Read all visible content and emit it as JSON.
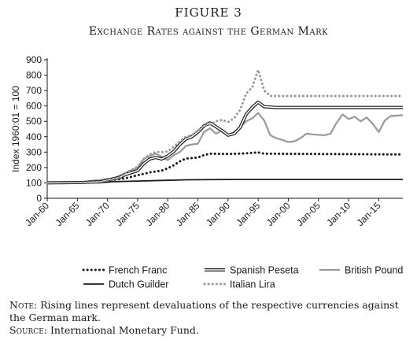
{
  "figure": {
    "label": "FIGURE 3",
    "title": "Exchange Rates against the German Mark"
  },
  "notes": {
    "note_label": "Note:",
    "note_text": " Rising lines represent devaluations of the respective currencies against the German mark.",
    "source_label": "Source:",
    "source_text": " International Monetary Fund."
  },
  "chart_data": {
    "type": "line",
    "title": "Exchange Rates against the German Mark",
    "xlabel": "",
    "ylabel": "Index 1960:01 = 100",
    "xlim": [
      1960,
      2019
    ],
    "ylim": [
      0,
      900
    ],
    "yticks": [
      0,
      100,
      200,
      300,
      400,
      500,
      600,
      700,
      800,
      900
    ],
    "xticks": [
      1960,
      1965,
      1970,
      1975,
      1980,
      1985,
      1990,
      1995,
      2000,
      2005,
      2010,
      2015
    ],
    "xticklabels": [
      "Jan-60",
      "Jan-65",
      "Jan-70",
      "Jan-75",
      "Jan-80",
      "Jan-85",
      "Jan-90",
      "Jan-95",
      "Jan-00",
      "Jan-05",
      "Jan-10",
      "Jan-15"
    ],
    "grid": false,
    "legend_position": "bottom",
    "series": [
      {
        "name": "French Franc",
        "color": "#1a1a1a",
        "style": "dotted",
        "points": [
          [
            1960,
            100
          ],
          [
            1965,
            101
          ],
          [
            1969,
            104
          ],
          [
            1970,
            115
          ],
          [
            1973,
            130
          ],
          [
            1975,
            150
          ],
          [
            1977,
            168
          ],
          [
            1979,
            180
          ],
          [
            1980,
            195
          ],
          [
            1981,
            215
          ],
          [
            1982,
            240
          ],
          [
            1983,
            258
          ],
          [
            1985,
            265
          ],
          [
            1986,
            280
          ],
          [
            1987,
            290
          ],
          [
            1990,
            288
          ],
          [
            1993,
            292
          ],
          [
            1995,
            298
          ],
          [
            1996,
            290
          ],
          [
            2019,
            285
          ]
        ]
      },
      {
        "name": "Spanish Peseta",
        "color": "#1a1a1a",
        "style": "double",
        "points": [
          [
            1960,
            100
          ],
          [
            1966,
            103
          ],
          [
            1969,
            108
          ],
          [
            1970,
            118
          ],
          [
            1972,
            135
          ],
          [
            1973,
            155
          ],
          [
            1975,
            180
          ],
          [
            1976,
            225
          ],
          [
            1977,
            255
          ],
          [
            1978,
            265
          ],
          [
            1979,
            255
          ],
          [
            1980,
            275
          ],
          [
            1981,
            305
          ],
          [
            1982,
            350
          ],
          [
            1983,
            385
          ],
          [
            1984,
            400
          ],
          [
            1985,
            430
          ],
          [
            1986,
            470
          ],
          [
            1987,
            490
          ],
          [
            1988,
            465
          ],
          [
            1989,
            440
          ],
          [
            1990,
            410
          ],
          [
            1991,
            420
          ],
          [
            1992,
            460
          ],
          [
            1993,
            545
          ],
          [
            1994,
            590
          ],
          [
            1995,
            625
          ],
          [
            1996,
            595
          ],
          [
            1998,
            590
          ],
          [
            2019,
            590
          ]
        ]
      },
      {
        "name": "British Pound",
        "color": "#999999",
        "style": "solid",
        "points": [
          [
            1960,
            100
          ],
          [
            1966,
            103
          ],
          [
            1967,
            112
          ],
          [
            1969,
            120
          ],
          [
            1971,
            130
          ],
          [
            1973,
            165
          ],
          [
            1975,
            200
          ],
          [
            1976,
            255
          ],
          [
            1977,
            275
          ],
          [
            1978,
            290
          ],
          [
            1979,
            270
          ],
          [
            1980,
            248
          ],
          [
            1981,
            280
          ],
          [
            1982,
            300
          ],
          [
            1983,
            340
          ],
          [
            1984,
            350
          ],
          [
            1985,
            355
          ],
          [
            1986,
            430
          ],
          [
            1987,
            455
          ],
          [
            1988,
            420
          ],
          [
            1989,
            440
          ],
          [
            1990,
            410
          ],
          [
            1991,
            430
          ],
          [
            1992,
            460
          ],
          [
            1993,
            500
          ],
          [
            1994,
            520
          ],
          [
            1995,
            555
          ],
          [
            1996,
            505
          ],
          [
            1997,
            410
          ],
          [
            1998,
            390
          ],
          [
            1999,
            380
          ],
          [
            2000,
            365
          ],
          [
            2001,
            370
          ],
          [
            2002,
            390
          ],
          [
            2003,
            420
          ],
          [
            2004,
            415
          ],
          [
            2005,
            412
          ],
          [
            2006,
            410
          ],
          [
            2007,
            420
          ],
          [
            2008,
            490
          ],
          [
            2009,
            545
          ],
          [
            2010,
            515
          ],
          [
            2011,
            530
          ],
          [
            2012,
            500
          ],
          [
            2013,
            525
          ],
          [
            2014,
            485
          ],
          [
            2015,
            430
          ],
          [
            2016,
            505
          ],
          [
            2017,
            535
          ],
          [
            2019,
            540
          ]
        ]
      },
      {
        "name": "Dutch Guilder",
        "color": "#1a1a1a",
        "style": "solid",
        "points": [
          [
            1960,
            100
          ],
          [
            1961,
            98
          ],
          [
            1969,
            102
          ],
          [
            1971,
            108
          ],
          [
            1975,
            112
          ],
          [
            1979,
            116
          ],
          [
            1983,
            120
          ],
          [
            1990,
            122
          ],
          [
            2019,
            122
          ]
        ]
      },
      {
        "name": "Italian Lira",
        "color": "#999999",
        "style": "dotted",
        "points": [
          [
            1960,
            100
          ],
          [
            1968,
            104
          ],
          [
            1970,
            115
          ],
          [
            1972,
            135
          ],
          [
            1973,
            165
          ],
          [
            1975,
            205
          ],
          [
            1976,
            255
          ],
          [
            1977,
            285
          ],
          [
            1978,
            300
          ],
          [
            1979,
            300
          ],
          [
            1980,
            305
          ],
          [
            1981,
            335
          ],
          [
            1982,
            370
          ],
          [
            1983,
            400
          ],
          [
            1984,
            410
          ],
          [
            1985,
            440
          ],
          [
            1986,
            470
          ],
          [
            1987,
            480
          ],
          [
            1988,
            500
          ],
          [
            1989,
            510
          ],
          [
            1990,
            495
          ],
          [
            1991,
            520
          ],
          [
            1992,
            575
          ],
          [
            1993,
            680
          ],
          [
            1994,
            720
          ],
          [
            1995,
            835
          ],
          [
            1996,
            700
          ],
          [
            1997,
            665
          ],
          [
            1998,
            665
          ],
          [
            2019,
            665
          ]
        ]
      }
    ]
  }
}
